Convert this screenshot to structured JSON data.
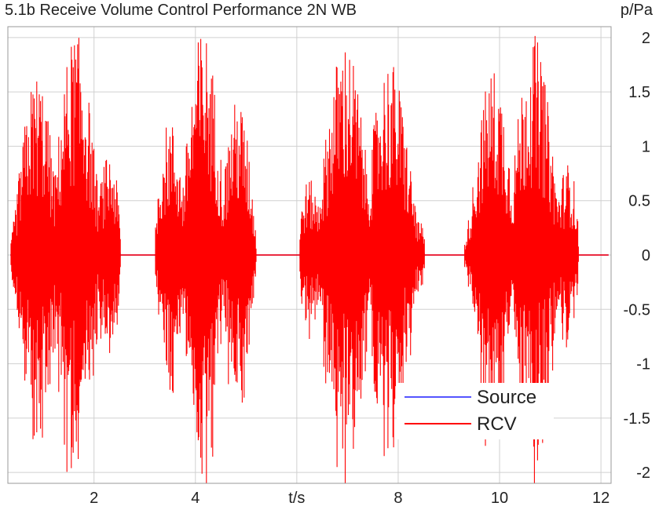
{
  "chart_data": {
    "type": "line",
    "title": "5.1b Receive Volume Control Performance 2N WB",
    "xlabel": "t/s",
    "ylabel": "p/Pa",
    "xlim": [
      0.3,
      12.2
    ],
    "ylim": [
      -2.1,
      2.1
    ],
    "xticks": [
      2,
      4,
      6,
      8,
      10,
      12
    ],
    "xtick_labels": [
      "2",
      "4",
      "t/s",
      "8",
      "10",
      "12"
    ],
    "yticks": [
      2,
      1.5,
      1,
      0.5,
      0,
      -0.5,
      -1,
      -1.5,
      -2
    ],
    "ytick_labels": [
      "2",
      "1.5",
      "1",
      "0.5",
      "0",
      "-0.5",
      "-1",
      "-1.5",
      "-2"
    ],
    "grid": true,
    "legend": "bottom-right",
    "series": [
      {
        "name": "Source",
        "color": "#5555ff",
        "segments": [
          {
            "start": 0.35,
            "end": 2.85,
            "amplitude": 0.3
          },
          {
            "start": 3.2,
            "end": 5.4,
            "amplitude": 0.35
          },
          {
            "start": 6.05,
            "end": 8.9,
            "amplitude": 0.3
          },
          {
            "start": 9.3,
            "end": 11.8,
            "amplitude": 0.3
          }
        ]
      },
      {
        "name": "RCV",
        "color": "#ff0000",
        "segments": [
          {
            "start": 0.35,
            "end": 2.85,
            "amplitude": 2.1
          },
          {
            "start": 3.2,
            "end": 5.5,
            "amplitude": 2.1
          },
          {
            "start": 6.05,
            "end": 8.9,
            "amplitude": 2.1
          },
          {
            "start": 9.3,
            "end": 11.9,
            "amplitude": 2.1
          }
        ]
      }
    ]
  }
}
